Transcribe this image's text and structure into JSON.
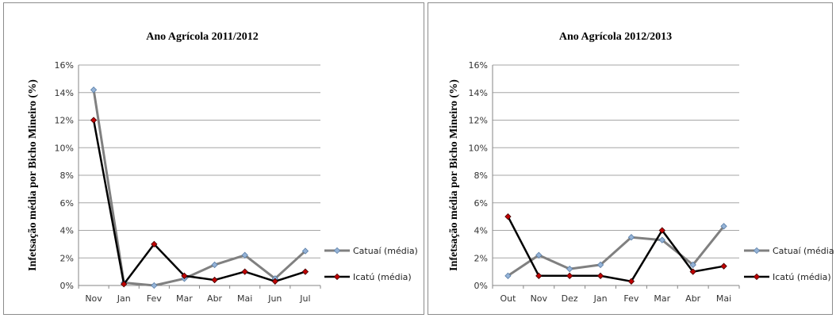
{
  "chart_data": [
    {
      "type": "line",
      "title": "Ano Agrícola 2011/2012",
      "ylabel": "Infetsação média  por  Bicho Mineiro (%)",
      "xlabel": "",
      "categories": [
        "Nov",
        "Jan",
        "Fev",
        "Mar",
        "Abr",
        "Mai",
        "Jun",
        "Jul"
      ],
      "y_ticks": [
        "0%",
        "2%",
        "4%",
        "6%",
        "8%",
        "10%",
        "12%",
        "14%",
        "16%"
      ],
      "ylim": [
        0,
        16
      ],
      "grid": true,
      "legend": "right",
      "series": [
        {
          "name": "Catuaí (média)",
          "values": [
            14.2,
            0.2,
            0.0,
            0.5,
            1.5,
            2.2,
            0.5,
            2.5
          ],
          "color": "#808080",
          "marker_color": "#95b3d7"
        },
        {
          "name": "Icatú (média)",
          "values": [
            12.0,
            0.1,
            3.0,
            0.7,
            0.4,
            1.0,
            0.3,
            1.0
          ],
          "color": "#000000",
          "marker_color": "#c00000"
        }
      ]
    },
    {
      "type": "line",
      "title": "Ano Agrícola 2012/2013",
      "ylabel": "Infetsação média  por  Bicho Mineiro (%)",
      "xlabel": "",
      "categories": [
        "Out",
        "Nov",
        "Dez",
        "Jan",
        "Fev",
        "Mar",
        "Abr",
        "Mai"
      ],
      "y_ticks": [
        "0%",
        "2%",
        "4%",
        "6%",
        "8%",
        "10%",
        "12%",
        "14%",
        "16%"
      ],
      "ylim": [
        0,
        16
      ],
      "grid": true,
      "legend": "right",
      "series": [
        {
          "name": "Catuaí (média)",
          "values": [
            0.7,
            2.2,
            1.2,
            1.5,
            3.5,
            3.3,
            1.5,
            4.3
          ],
          "color": "#808080",
          "marker_color": "#95b3d7"
        },
        {
          "name": "Icatú (média)",
          "values": [
            5.0,
            0.7,
            0.7,
            0.7,
            0.3,
            4.0,
            1.0,
            1.4
          ],
          "color": "#000000",
          "marker_color": "#c00000"
        }
      ]
    }
  ]
}
